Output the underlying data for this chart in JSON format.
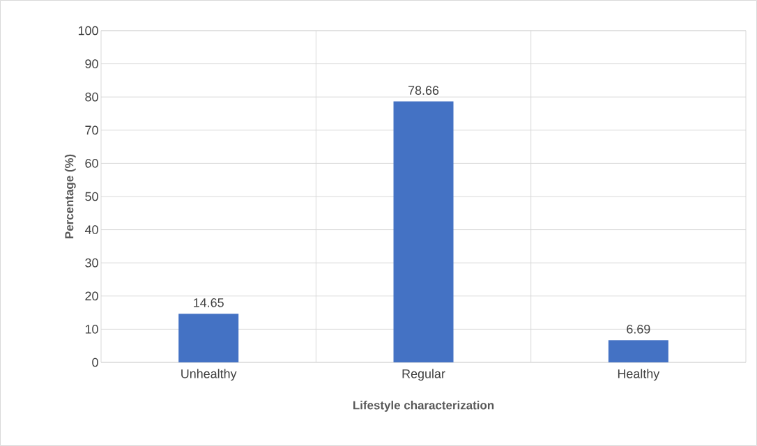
{
  "chart_data": {
    "type": "bar",
    "xlabel": "Lifestyle characterization",
    "ylabel": "Percentage (%)",
    "categories": [
      "Unhealthy",
      "Regular",
      "Healthy"
    ],
    "values": [
      14.65,
      78.66,
      6.69
    ],
    "color": "#4472c4",
    "ylim": [
      0,
      100
    ],
    "yticks": [
      0,
      10,
      20,
      30,
      40,
      50,
      60,
      70,
      80,
      90,
      100
    ],
    "grid": true,
    "data_labels": true
  }
}
